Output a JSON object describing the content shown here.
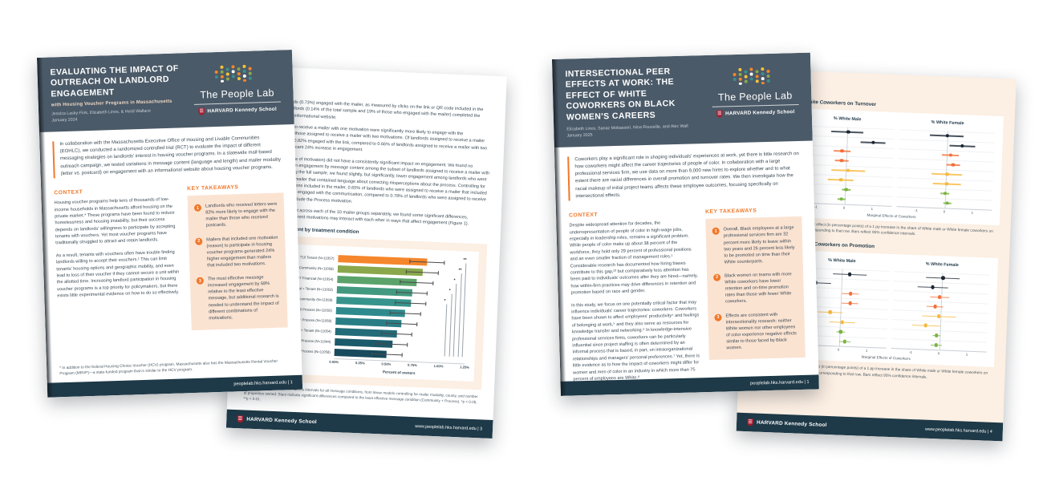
{
  "brand": {
    "people_lab": "The People Lab",
    "harvard": "HARVARD Kennedy School"
  },
  "doc1": {
    "front": {
      "title": "EVALUATING THE IMPACT OF OUTREACH ON LANDLORD ENGAGEMENT",
      "subtitle": "with Housing Voucher Programs in Massachusetts",
      "authors": "Jessica Lasky-Fink, Elizabeth Linos, & Heidi Wallace",
      "date": "January 2024",
      "intro": "In collaboration with the Massachusetts Executive Office of Housing and Livable Communities (EOHLC), we conducted a randomized controlled trial (RCT) to evaluate the impact of different messaging strategies on landlords' interest in housing voucher programs. In a statewide mail-based outreach campaign, we tested variations in message content (language and length) and mailer modality (letter vs. postcard) on engagement with an informational website about housing voucher programs.",
      "context_heading": "CONTEXT",
      "context_p1": "Housing voucher programs help tens of thousands of low-income households in Massachusetts afford housing on the private market.* These programs have been found to reduce homelessness and housing instability, but their success depends on landlords' willingness to participate by accepting tenants with vouchers. Yet most voucher programs have traditionally struggled to attract and retain landlords.",
      "context_p2": "As a result, tenants with vouchers often have trouble finding landlords willing to accept their vouchers.¹ This can limit tenants' housing options and geographic mobility, and even lead to loss of their voucher if they cannot secure a unit within the allotted time. Increasing landlord participation in housing voucher programs is a top priority for policymakers, but there exists little experimental evidence on how to do so effectively.",
      "takeaways_heading": "KEY TAKEAWAYS",
      "takeaways": [
        {
          "num": "1",
          "text": "Landlords who received letters were 82% more likely to engage with the mailer than those who received postcards."
        },
        {
          "num": "2",
          "text": "Mailers that included one motivation (reason) to participate in housing voucher programs generated 24% higher engagement than mailers that included two motivations."
        },
        {
          "num": "3",
          "text": "The most effective message increased engagement by 68% relative to the least effective message, but additional research is needed to understand the impact of different combinations of motivations."
        }
      ],
      "footnote": "* In addition to the federal Housing Choice Voucher (HCV) program, Massachusetts also has the Massachusetts Rental Voucher Program (MRVP)—a state-funded program that is similar to the HCV program.",
      "footer": "peoplelab.hks.harvard.edu | 1"
    },
    "back": {
      "heading": "RESULTS",
      "p1": "Overall, 804 landlords (0.73%) engaged with the mailer, as measured by clicks on the link or QR code included in the mailer, and 154 landlords (0.14% of the total sample and 19% of those who engaged with the mailer) completed the interest form on the informational website.",
      "p2": "Landlords assigned to receive a mailer with one motivation were significantly more likely to engage with the communication than those assigned to receive a mailer with two motivations. Of landlords assigned to receive a mailer with one motivation, 0.82% engaged with the link, compared to 0.66% of landlords assigned to receive a mailer with two motivations—a significant 24% increase in engagement.",
      "p3": "Message content (type of motivation) did not have a consistently significant impact on engagement. We found no significant difference in engagement by message content among the subset of landlords assigned to receive a mailer with one motivation. Among the full sample, we found slightly, but significantly, lower engagement among landlords who were assigned to receive a mailer that contained language about correcting misperceptions about the process. Controlling for the number of motivations included in the mailer, 0.65% of landlords who were assigned to receive a mailer that included the Process motivation engaged with the communication, compared to 0.78% of landlords who were assigned to receive a mailer that did not include the Process motivation.",
      "p4": "Comparing engagement across each of the 10 mailer groups separately, we found some significant differences, suggesting that the different motivations may interact with each other in ways that affect engagement (Figure 1).",
      "figure_title": "Figure 1: Engagement by treatment condition",
      "note": "Note: Estimates and 95% confidence intervals for all message conditions, from linear models controlling for mailer modality, county, and number of properties owned. Stars indicate significant differences compared to the least effective message condition (Community + Process). *p < 0.05, **p < 0.01.",
      "footer_page": "www.peoplelab.hks.harvard.edu | 3",
      "chart": {
        "type": "bar",
        "xmax": 1.25,
        "xticks": [
          "0.00%",
          "0.25%",
          "0.50%",
          "0.75%",
          "1.00%",
          "1.25%"
        ],
        "xlabel": "Percent of owners",
        "bars": [
          {
            "label": "T10 Tenant (N=11057)",
            "value": 0.85,
            "ci": 0.17,
            "color": "#f5862b",
            "sig": "**"
          },
          {
            "label": "T08 Community (N=11058)",
            "value": 0.81,
            "ci": 0.16,
            "color": "#8aa84b",
            "sig": "**"
          },
          {
            "label": "T07 Financial (N=11054)",
            "value": 0.76,
            "ci": 0.16,
            "color": "#5ba36b",
            "sig": "*"
          },
          {
            "label": "T01 Financial + Tenant (N=11053)",
            "value": 0.72,
            "ci": 0.15,
            "color": "#43997f",
            "sig": "*"
          },
          {
            "label": "T02 Financial + Community (N=11059)",
            "value": 0.71,
            "ci": 0.15,
            "color": "#37948c",
            "sig": "*"
          },
          {
            "label": "T09 Process (N=11055)",
            "value": 0.66,
            "ci": 0.15,
            "color": "#2f8a8d",
            "sig": ""
          },
          {
            "label": "T03 Financial + Process (N=11058)",
            "value": 0.63,
            "ci": 0.15,
            "color": "#297e86",
            "sig": ""
          },
          {
            "label": "T04 Community + Tenant (N=11054)",
            "value": 0.59,
            "ci": 0.15,
            "color": "#226c79",
            "sig": ""
          },
          {
            "label": "T06 Tenant + Process (N=11044)",
            "value": 0.55,
            "ci": 0.15,
            "color": "#1b5a6a",
            "sig": ""
          },
          {
            "label": "T05 Community + Process (N=11058)",
            "value": 0.5,
            "ci": 0.15,
            "color": "#174a5d",
            "sig": ""
          }
        ]
      }
    }
  },
  "doc2": {
    "front": {
      "title": "INTERSECTIONAL PEER EFFECTS AT WORK: THE EFFECT OF WHITE COWORKERS ON BLACK WOMEN'S CAREERS",
      "authors": "Elizabeth Linos, Sanaz Mobasseri, Nina Roussille, and Alec Wall",
      "date": "January 2025",
      "intro": "Coworkers play a significant role in shaping individuals' experiences at work, yet there is little research on how coworkers might affect the career trajectories of people of color. In collaboration with a large professional services firm, we use data on more than 9,000 new hires to explore whether and to what extent there are racial differences in overall promotion and turnover rates. We then investigate how the racial makeup of initial project teams affects these employee outcomes, focusing specifically on intersectional effects.",
      "context_heading": "CONTEXT",
      "context_p1": "Despite widespread attention for decades, the underrepresentation of people of color in high-wage jobs, especially in leadership roles, remains a significant problem. While people of color make up about 38 percent of the workforce, they hold only 29 percent of professional positions and an even smaller fraction of management roles.¹ Considerable research has documented how hiring biases contribute to this gap,²³ but comparatively less attention has been paid to individuals' outcomes after they are hired—namely, how within-firm practices may drive differences in retention and promotion based on race and gender.",
      "context_p2": "In this study, we focus on one potentially critical factor that may influence individuals' career trajectories: coworkers. Coworkers have been shown to affect employees' productivity⁴ and feelings of belonging at work,⁵ and they also serve as resources for knowledge transfer and networking.⁶ In knowledge-intensive professional services firms, coworkers can be particularly influential since project staffing is often determined by an informal process that is based, in part, on intraorganizational relationships and managers' personal preferences.⁷ Yet, there is little evidence as to how the impact of coworkers might differ for women and men of color in an industry in which more than 75 percent of employees are White.⁸",
      "takeaways_heading": "KEY TAKEAWAYS",
      "takeaways": [
        {
          "num": "1",
          "text": "Overall, Black employees at a large professional services firm are 32 percent more likely to leave within two years and 26 percent less likely to be promoted on time than their White counterparts."
        },
        {
          "num": "2",
          "text": "Black women on teams with more White coworkers have lower retention and on-time promotion rates than those with fewer White coworkers."
        },
        {
          "num": "3",
          "text": "Effects are consistent with intersectionality research: neither White women nor other employees of color experience negative effects similar to those faced by Black women."
        }
      ],
      "footer": "peoplelab.hks.harvard.edu | 1"
    },
    "back": {
      "footer_page": "www.peoplelab.hks.harvard.edu | 4",
      "fig1": {
        "type": "scatter",
        "title": "Figure 1: Effect of White Coworkers on Turnover",
        "caption": "Note: Each dot shows the marginal effect (in percentage points) of a 1 pp increase in the share of White male or White female coworkers on the turnover rate of the group corresponding to that row. Bars reflect 95% confidence intervals.",
        "panel_titles": [
          "% White Male",
          "% White Female"
        ],
        "xlabel": "Marginal Effects of Coworkers",
        "xticks": [
          -1,
          0,
          1
        ],
        "xmin": -1.7,
        "xmax": 1.7,
        "rows": [
          {
            "label": "Black Male",
            "color": "#1c2733",
            "wm": {
              "v": 0.05,
              "lo": -0.55,
              "hi": 0.6
            },
            "wf": {
              "v": 0.0,
              "lo": -0.6,
              "hi": 0.6
            }
          },
          {
            "label": "Black Female",
            "color": "#1c2733",
            "wm": {
              "v": 0.95,
              "lo": 0.5,
              "hi": 1.4
            },
            "wf": {
              "v": 0.55,
              "lo": 0.1,
              "hi": 1.0
            }
          },
          {
            "label": "Asian Male",
            "color": "#f2703a",
            "wm": {
              "v": -0.15,
              "lo": -0.45,
              "hi": 0.15
            },
            "wf": {
              "v": 0.15,
              "lo": -0.15,
              "hi": 0.45
            }
          },
          {
            "label": "Asian Female",
            "color": "#f2703a",
            "wm": {
              "v": -0.15,
              "lo": -0.4,
              "hi": 0.1
            },
            "wf": {
              "v": 0.25,
              "lo": 0.0,
              "hi": 0.5
            }
          },
          {
            "label": "Hispanic Male",
            "color": "#f6b93f",
            "wm": {
              "v": 0.1,
              "lo": -0.5,
              "hi": 0.7
            },
            "wf": {
              "v": 0.05,
              "lo": -0.5,
              "hi": 0.6
            }
          },
          {
            "label": "Hispanic Female",
            "color": "#f6b93f",
            "wm": {
              "v": -0.15,
              "lo": -0.6,
              "hi": 0.3
            },
            "wf": {
              "v": 0.05,
              "lo": -0.45,
              "hi": 0.55
            }
          },
          {
            "label": "White Male",
            "color": "#7cb342",
            "wm": {
              "v": 0.05,
              "lo": -0.1,
              "hi": 0.2
            },
            "wf": {
              "v": 0.0,
              "lo": -0.15,
              "hi": 0.15
            }
          },
          {
            "label": "White Female",
            "color": "#7cb342",
            "wm": {
              "v": -0.1,
              "lo": -0.25,
              "hi": 0.05
            },
            "wf": {
              "v": 0.1,
              "lo": -0.05,
              "hi": 0.25
            }
          }
        ]
      },
      "fig2": {
        "type": "scatter",
        "title": "Figure 2: Effect of White Coworkers on Promotion",
        "caption": "Note: Each dot shows the marginal effect (in percentage points) of a 1 pp increase in the share of White male or White female coworkers on the on-time promotion rate of the group corresponding to that row. Bars reflect 95% confidence intervals.",
        "panel_titles": [
          "% White Male",
          "% White Female"
        ],
        "xlabel": "Marginal Effects of Coworkers",
        "xticks": [
          -1,
          0,
          1
        ],
        "xmin": -1.7,
        "xmax": 1.7,
        "rows": [
          {
            "label": "Black Male",
            "color": "#1c2733",
            "wm": {
              "v": 0.3,
              "lo": -0.3,
              "hi": 0.9
            },
            "wf": {
              "v": 0.05,
              "lo": -0.55,
              "hi": 0.65
            }
          },
          {
            "label": "Black Female",
            "color": "#1c2733",
            "wm": {
              "v": -0.9,
              "lo": -1.45,
              "hi": -0.35
            },
            "wf": {
              "v": -0.3,
              "lo": -0.85,
              "hi": 0.25
            }
          },
          {
            "label": "Asian Male",
            "color": "#f2703a",
            "wm": {
              "v": 0.35,
              "lo": 0.05,
              "hi": 0.65
            },
            "wf": {
              "v": -0.05,
              "lo": -0.4,
              "hi": 0.3
            }
          },
          {
            "label": "Asian Female",
            "color": "#f2703a",
            "wm": {
              "v": 0.35,
              "lo": 0.05,
              "hi": 0.65
            },
            "wf": {
              "v": -0.2,
              "lo": -0.5,
              "hi": 0.1
            }
          },
          {
            "label": "Hispanic Male",
            "color": "#f6b93f",
            "wm": {
              "v": -0.35,
              "lo": -0.8,
              "hi": 0.1
            },
            "wf": {
              "v": -0.05,
              "lo": -0.65,
              "hi": 0.55
            }
          },
          {
            "label": "Hispanic Female",
            "color": "#f6b93f",
            "wm": {
              "v": 0.1,
              "lo": -0.35,
              "hi": 0.55
            },
            "wf": {
              "v": -0.5,
              "lo": -1.0,
              "hi": 0.0
            }
          },
          {
            "label": "White Male",
            "color": "#7cb342",
            "wm": {
              "v": 0.05,
              "lo": -0.1,
              "hi": 0.2
            },
            "wf": {
              "v": -0.1,
              "lo": -0.25,
              "hi": 0.05
            }
          },
          {
            "label": "White Female",
            "color": "#7cb342",
            "wm": {
              "v": 0.2,
              "lo": 0.0,
              "hi": 0.4
            },
            "wf": {
              "v": -0.1,
              "lo": -0.3,
              "hi": 0.1
            }
          }
        ]
      }
    }
  }
}
